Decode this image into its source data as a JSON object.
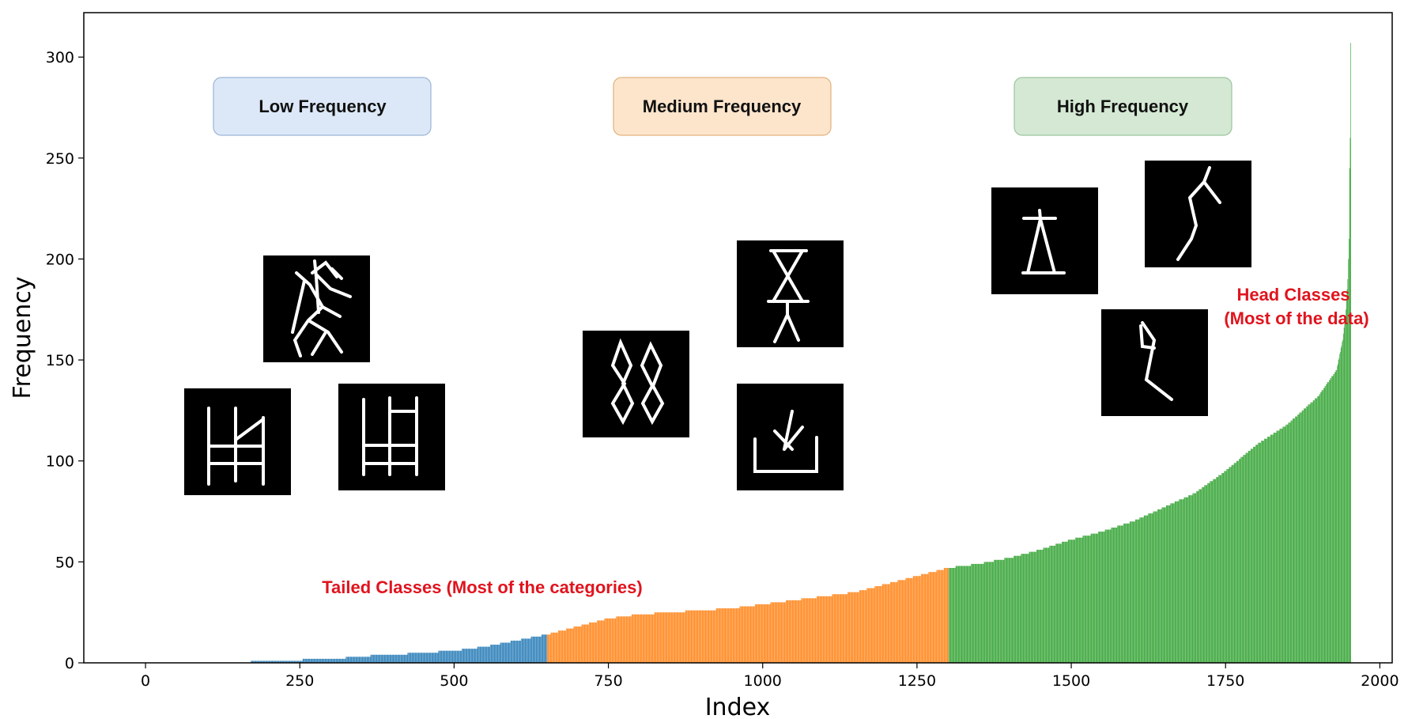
{
  "chart_data": {
    "type": "bar",
    "xlabel": "Index",
    "ylabel": "Frequency",
    "xlim": [
      -100,
      2020
    ],
    "ylim": [
      0,
      322
    ],
    "x_ticks": [
      0,
      250,
      500,
      750,
      1000,
      1250,
      1500,
      1750,
      2000
    ],
    "y_ticks": [
      0,
      50,
      100,
      150,
      200,
      250,
      300
    ],
    "n_bars": 1954,
    "series": [
      {
        "name": "Low Frequency",
        "color": "#1f77b4",
        "index_range": [
          0,
          650
        ]
      },
      {
        "name": "Medium Frequency",
        "color": "#ff7f0e",
        "index_range": [
          651,
          1301
        ]
      },
      {
        "name": "High Frequency",
        "color": "#2ca02c",
        "index_range": [
          1302,
          1953
        ]
      }
    ],
    "frequency_curve": [
      [
        0,
        0
      ],
      [
        170,
        0
      ],
      [
        171,
        1
      ],
      [
        250,
        1
      ],
      [
        260,
        2
      ],
      [
        320,
        2
      ],
      [
        330,
        3
      ],
      [
        400,
        4
      ],
      [
        450,
        5
      ],
      [
        500,
        6
      ],
      [
        550,
        8
      ],
      [
        600,
        11
      ],
      [
        650,
        14
      ],
      [
        700,
        18
      ],
      [
        750,
        22
      ],
      [
        800,
        24
      ],
      [
        850,
        25
      ],
      [
        900,
        26
      ],
      [
        950,
        27
      ],
      [
        1000,
        29
      ],
      [
        1050,
        31
      ],
      [
        1100,
        33
      ],
      [
        1150,
        35
      ],
      [
        1200,
        39
      ],
      [
        1250,
        43
      ],
      [
        1300,
        47
      ],
      [
        1350,
        49
      ],
      [
        1400,
        52
      ],
      [
        1450,
        56
      ],
      [
        1500,
        61
      ],
      [
        1550,
        65
      ],
      [
        1600,
        70
      ],
      [
        1650,
        77
      ],
      [
        1700,
        84
      ],
      [
        1750,
        95
      ],
      [
        1800,
        108
      ],
      [
        1850,
        118
      ],
      [
        1900,
        132
      ],
      [
        1930,
        145
      ],
      [
        1940,
        160
      ],
      [
        1945,
        175
      ],
      [
        1948,
        190
      ],
      [
        1950,
        210
      ],
      [
        1951,
        245
      ],
      [
        1952,
        260
      ],
      [
        1953,
        307
      ]
    ],
    "bands": [
      {
        "label": "Low Frequency",
        "fill": "#dce8f8",
        "stroke": "#9bb5d6"
      },
      {
        "label": "Medium Frequency",
        "fill": "#fde5cc",
        "stroke": "#e2b27c"
      },
      {
        "label": "High Frequency",
        "fill": "#d4e8d4",
        "stroke": "#9cc59c"
      }
    ],
    "annotations": [
      {
        "text": "Tailed Classes (Most of the categories)",
        "color": "#e0141e"
      },
      {
        "text": "Head Classes",
        "color": "#e0141e"
      },
      {
        "text": "(Most of the data)",
        "color": "#e0141e"
      }
    ],
    "thumbnails": [
      {
        "name": "glyph-low-1"
      },
      {
        "name": "glyph-low-2"
      },
      {
        "name": "glyph-low-3"
      },
      {
        "name": "glyph-medium-1"
      },
      {
        "name": "glyph-medium-2"
      },
      {
        "name": "glyph-medium-3"
      },
      {
        "name": "glyph-high-1"
      },
      {
        "name": "glyph-high-2"
      },
      {
        "name": "glyph-high-3"
      }
    ]
  }
}
